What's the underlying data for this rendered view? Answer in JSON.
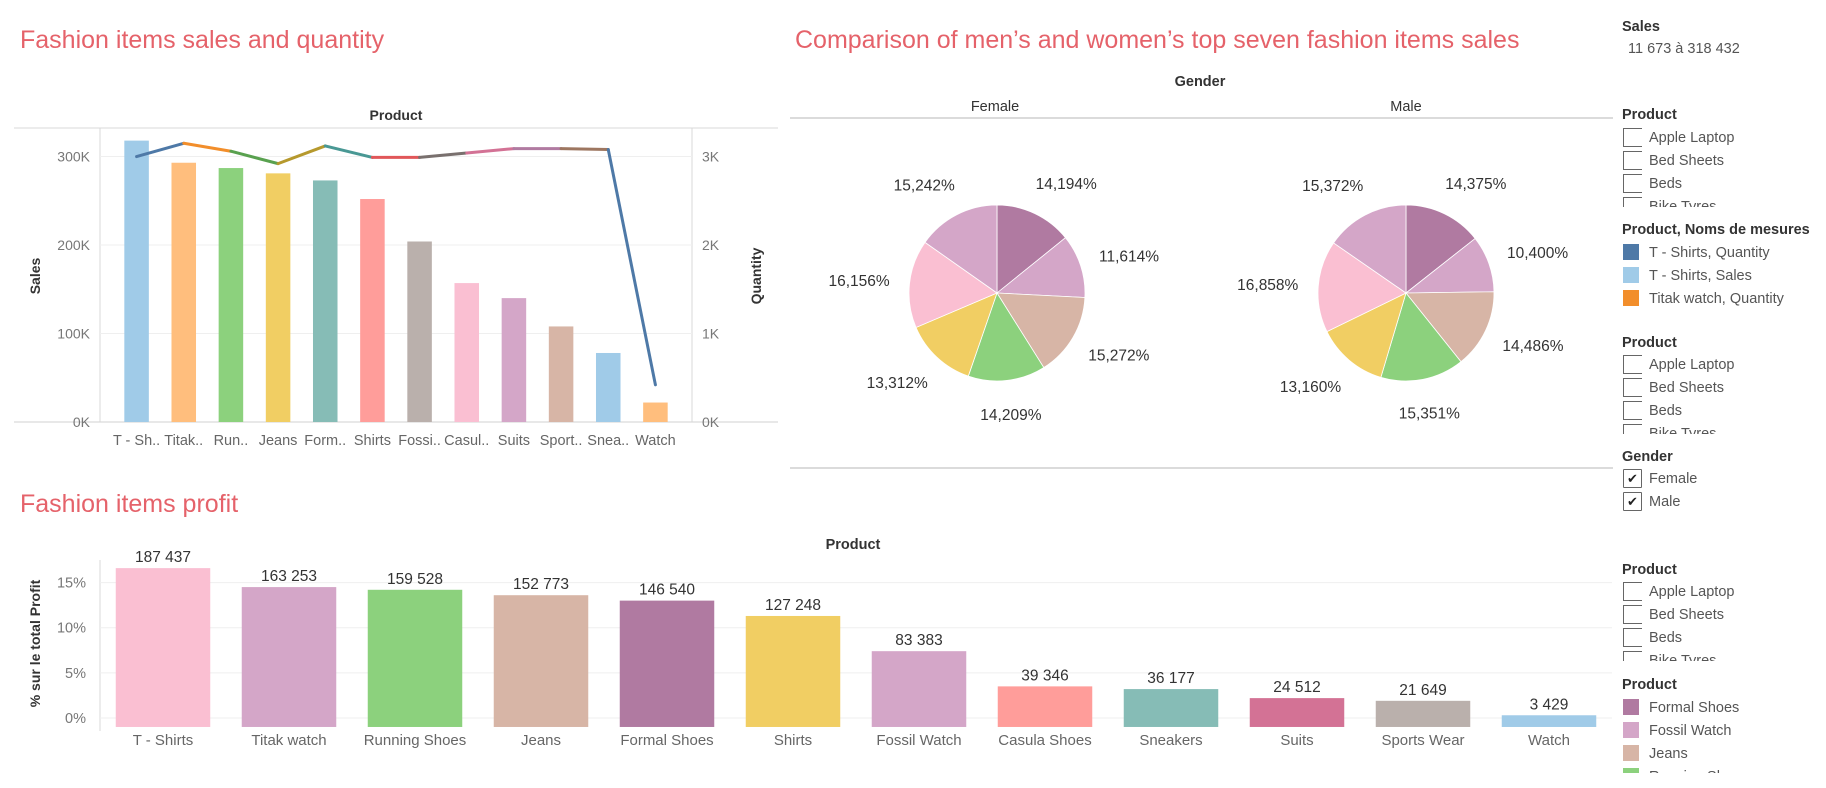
{
  "titles": {
    "top_left": "Fashion items sales and quantity",
    "top_right": "Comparison of men’s and women’s top seven fashion items sales",
    "bottom": "Fashion items profit"
  },
  "colors": {
    "accent_title": "#e5626a",
    "tableau": [
      "#a0cbe8",
      "#ffbe7d",
      "#8cd17d",
      "#f1ce63",
      "#86bcb6",
      "#ff9d9a",
      "#bab0ac",
      "#fabfd2",
      "#d4a6c8",
      "#d7b5a6",
      "#a0cbe8",
      "#ffbe7d"
    ],
    "pie": {
      "formal": "#b07aa1",
      "fossil": "#d4a6c8",
      "jeans": "#d7b5a6",
      "running": "#8cd17d",
      "shirts": "#f1ce63",
      "tshirts": "#fabfd2",
      "titak": "#d4a6c8"
    },
    "profit": [
      "#fabfd2",
      "#d4a6c8",
      "#8cd17d",
      "#d7b5a6",
      "#b07aa1",
      "#f1ce63",
      "#d4a6c8",
      "#ff9d9a",
      "#86bcb6",
      "#d37295",
      "#bab0ac",
      "#a0cbe8"
    ]
  },
  "chart_data": [
    {
      "id": "sales_quantity",
      "type": "bar",
      "title": "Fashion items sales and quantity",
      "xlabel": "Product",
      "ylabel": "Sales",
      "y2label": "Quantity",
      "categories": [
        "T - Sh..",
        "Titak..",
        "Run..",
        "Jeans",
        "Form..",
        "Shirts",
        "Fossi..",
        "Casul..",
        "Suits",
        "Sport..",
        "Snea..",
        "Watch"
      ],
      "series": [
        {
          "name": "Sales",
          "type": "bar",
          "values": [
            318000,
            293000,
            287000,
            281000,
            273000,
            252000,
            204000,
            157000,
            140000,
            108000,
            78000,
            22000
          ]
        },
        {
          "name": "Quantity",
          "type": "line",
          "axis": "right",
          "values": [
            3000,
            3150,
            3060,
            2920,
            3120,
            2990,
            2990,
            3040,
            3090,
            3090,
            3080,
            420
          ]
        }
      ],
      "ylim": [
        0,
        330000
      ],
      "y2lim": [
        0,
        3300
      ],
      "yticks": [
        "0K",
        "100K",
        "200K",
        "300K"
      ],
      "y2ticks": [
        "0K",
        "1K",
        "2K",
        "3K"
      ]
    },
    {
      "id": "gender_pies",
      "type": "pie",
      "title": "Comparison of men’s and women’s top seven fashion items sales",
      "column_header": "Gender",
      "pies": [
        {
          "name": "Female",
          "slices": [
            {
              "key": "formal",
              "value": 14.194,
              "label": "14,194%"
            },
            {
              "key": "fossil",
              "value": 11.614,
              "label": "11,614%"
            },
            {
              "key": "jeans",
              "value": 15.272,
              "label": "15,272%"
            },
            {
              "key": "running",
              "value": 14.209,
              "label": "14,209%"
            },
            {
              "key": "shirts",
              "value": 13.312,
              "label": "13,312%"
            },
            {
              "key": "tshirts",
              "value": 16.156,
              "label": "16,156%"
            },
            {
              "key": "titak",
              "value": 15.242,
              "label": "15,242%"
            }
          ]
        },
        {
          "name": "Male",
          "slices": [
            {
              "key": "formal",
              "value": 14.375,
              "label": "14,375%"
            },
            {
              "key": "fossil",
              "value": 10.4,
              "label": "10,400%"
            },
            {
              "key": "jeans",
              "value": 14.486,
              "label": "14,486%"
            },
            {
              "key": "running",
              "value": 15.351,
              "label": "15,351%"
            },
            {
              "key": "shirts",
              "value": 13.16,
              "label": "13,160%"
            },
            {
              "key": "tshirts",
              "value": 16.858,
              "label": "16,858%"
            },
            {
              "key": "titak",
              "value": 15.372,
              "label": "15,372%"
            }
          ]
        }
      ]
    },
    {
      "id": "profit",
      "type": "bar",
      "title": "Fashion items profit",
      "xlabel": "Product",
      "ylabel": "% sur le total Profit",
      "categories": [
        "T - Shirts",
        "Titak watch",
        "Running Shoes",
        "Jeans",
        "Formal Shoes",
        "Shirts",
        "Fossil Watch",
        "Casula Shoes",
        "Sneakers",
        "Suits",
        "Sports Wear",
        "Watch"
      ],
      "values": [
        16.6,
        14.5,
        14.2,
        13.6,
        13.0,
        11.3,
        7.4,
        3.5,
        3.2,
        2.2,
        1.9,
        0.3
      ],
      "data_labels": [
        "187 437",
        "163 253",
        "159 528",
        "152 773",
        "146 540",
        "127 248",
        "83 383",
        "39 346",
        "36 177",
        "24 512",
        "21 649",
        "3 429"
      ],
      "ylim": [
        -1,
        17.5
      ],
      "yticks": [
        "0%",
        "5%",
        "10%",
        "15%"
      ]
    }
  ],
  "sidebar": {
    "sales": {
      "header": "Sales",
      "range": "11 673 à 318 432"
    },
    "product_filter_1": {
      "header": "Product",
      "items": [
        "Apple Laptop",
        "Bed Sheets",
        "Beds",
        "Bike Tyres"
      ]
    },
    "legend_measures": {
      "header": "Product, Noms de mesures",
      "items": [
        {
          "label": "T - Shirts, Quantity",
          "color": "#4e79a7"
        },
        {
          "label": "T - Shirts, Sales",
          "color": "#a0cbe8"
        },
        {
          "label": "Titak watch, Quantity",
          "color": "#f28e2b"
        }
      ]
    },
    "product_filter_2": {
      "header": "Product",
      "items": [
        "Apple Laptop",
        "Bed Sheets",
        "Beds",
        "Bike Tyres"
      ]
    },
    "gender_filter": {
      "header": "Gender",
      "items": [
        {
          "label": "Female",
          "checked": "✔"
        },
        {
          "label": "Male",
          "checked": "✔"
        }
      ]
    },
    "product_filter_3": {
      "header": "Product",
      "items": [
        "Apple Laptop",
        "Bed Sheets",
        "Beds",
        "Bike Tyres"
      ]
    },
    "legend_profit": {
      "header": "Product",
      "items": [
        {
          "label": "Formal Shoes",
          "color": "#b07aa1"
        },
        {
          "label": "Fossil Watch",
          "color": "#d4a6c8"
        },
        {
          "label": "Jeans",
          "color": "#d7b5a6"
        },
        {
          "label": "Running Shoes",
          "color": "#8cd17d"
        }
      ]
    }
  }
}
